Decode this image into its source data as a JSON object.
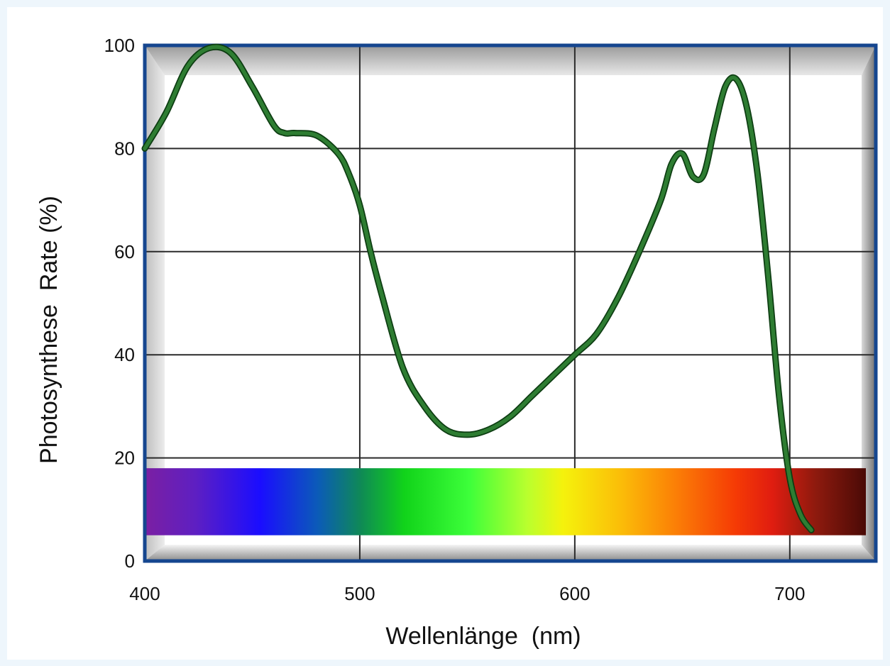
{
  "chart_data": {
    "type": "line",
    "title": "",
    "xlabel": "Wellenlänge  (nm)",
    "ylabel": "Photosynthese  Rate (%)",
    "xlim": [
      400,
      740
    ],
    "ylim": [
      0,
      100
    ],
    "grid": true,
    "x_ticks": [
      400,
      500,
      600,
      700
    ],
    "y_ticks": [
      0,
      20,
      40,
      60,
      80,
      100
    ],
    "x_tick_labels": [
      "400",
      "500",
      "600",
      "700"
    ],
    "y_tick_labels": [
      "0",
      "20",
      "40",
      "60",
      "80",
      "100"
    ],
    "background_band": {
      "label": "visible spectrum",
      "y_range": [
        5,
        18
      ],
      "x_range": [
        400,
        740
      ]
    },
    "series": [
      {
        "color": "#2e7d32",
        "x": [
          400,
          410,
          420,
          430,
          440,
          450,
          460,
          465,
          470,
          480,
          490,
          495,
          500,
          505,
          510,
          520,
          530,
          540,
          550,
          560,
          570,
          580,
          590,
          600,
          610,
          620,
          630,
          640,
          645,
          650,
          655,
          660,
          665,
          670,
          675,
          680,
          685,
          690,
          695,
          700,
          705,
          710
        ],
        "y": [
          80,
          87,
          96,
          99.5,
          98.5,
          92,
          84.5,
          83,
          83,
          82.5,
          79,
          75,
          69,
          60,
          52,
          37.5,
          30,
          25.5,
          24.5,
          25.5,
          28,
          32,
          36,
          40,
          44,
          51,
          60,
          70,
          77,
          79,
          74.5,
          75,
          84,
          92,
          93.5,
          88,
          75,
          55,
          32,
          16,
          9,
          6
        ]
      }
    ]
  }
}
